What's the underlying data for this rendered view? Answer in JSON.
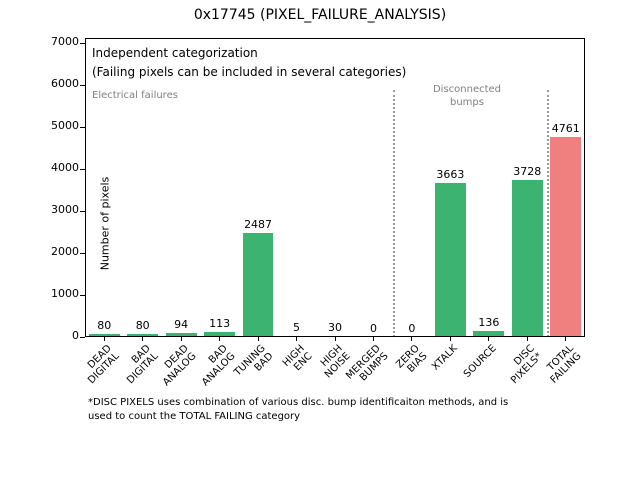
{
  "annotations": {
    "note_line1": "Independent categorization",
    "note_line2": "(Failing pixels can be included in several categories)",
    "group_left": "Electrical failures",
    "group_right": "Disconnected\nbumps",
    "footnote": "*DISC PIXELS uses combination of various disc. bump identificaiton methods, and is\nused to count the TOTAL FAILING category"
  },
  "chart_data": {
    "type": "bar",
    "title": "0x17745 (PIXEL_FAILURE_ANALYSIS)",
    "ylabel": "Number of pixels",
    "categories": [
      "DEAD\nDIGITAL",
      "BAD\nDIGITAL",
      "DEAD\nANALOG",
      "BAD\nANALOG",
      "TUNING\nBAD",
      "HIGH\nENC",
      "HIGH\nNOISE",
      "MERGED\nBUMPS",
      "ZERO\nBIAS",
      "XTALK",
      "SOURCE",
      "DISC\nPIXELS*",
      "TOTAL\nFAILING"
    ],
    "values": [
      80,
      80,
      94,
      113,
      2487,
      5,
      30,
      0,
      0,
      3663,
      136,
      3728,
      4761
    ],
    "ylim": [
      0,
      7000
    ],
    "yticks": [
      0,
      1000,
      2000,
      3000,
      4000,
      5000,
      6000,
      7000
    ],
    "grid": false,
    "dividers_after_index": [
      7,
      11
    ],
    "colors": {
      "default_bar": "#3cb371",
      "total_bar": "#f08080",
      "divider": "#999999",
      "group_label": "#808080"
    }
  }
}
